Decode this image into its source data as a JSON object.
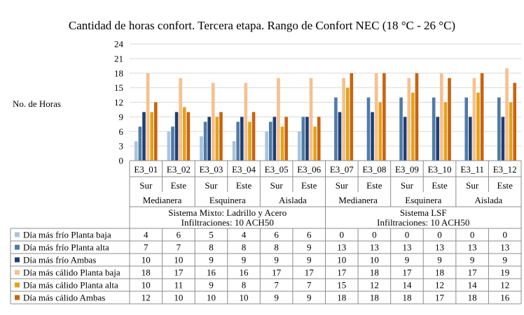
{
  "chart_data": {
    "type": "bar",
    "title": "Cantidad de horas confort. Tercera etapa. Rango de Confort NEC (18 °C - 26 °C)",
    "ylabel": "No. de Horas",
    "xlabel": "",
    "ylim": [
      0,
      24
    ],
    "yticks": [
      0,
      3,
      6,
      9,
      12,
      15,
      18,
      21,
      24
    ],
    "grid": true,
    "legend": "table-left",
    "categories": [
      "E3_01",
      "E3_02",
      "E3_03",
      "E3_04",
      "E3_05",
      "E3_06",
      "E3_07",
      "E3_08",
      "E3_09",
      "E3_10",
      "E3_11",
      "E3_12"
    ],
    "orientations": [
      "Sur",
      "Este",
      "Sur",
      "Este",
      "Sur",
      "Este",
      "Sur",
      "Este",
      "Sur",
      "Este",
      "Sur",
      "Este"
    ],
    "groups": [
      "Medianera",
      "Esquinera",
      "Aislada",
      "Medianera",
      "Esquinera",
      "Aislada"
    ],
    "systems": [
      {
        "line1": "Sistema Mixto: Ladrillo y Acero",
        "line2": "Infiltraciones: 10 ACH50"
      },
      {
        "line1": "Sistema LSF",
        "line2": "Infiltraciones: 10 ACH50"
      }
    ],
    "series": [
      {
        "name": "Día más frío Planta baja",
        "color": "#a9c4db",
        "values": [
          4,
          6,
          5,
          4,
          6,
          6,
          0,
          0,
          0,
          0,
          0,
          0
        ]
      },
      {
        "name": "Día más frío Planta alta",
        "color": "#4f7ba6",
        "values": [
          7,
          7,
          8,
          8,
          8,
          9,
          13,
          13,
          13,
          13,
          13,
          13
        ]
      },
      {
        "name": "Día más frío Ambas",
        "color": "#1f3f73",
        "values": [
          10,
          10,
          9,
          9,
          9,
          9,
          10,
          10,
          9,
          9,
          9,
          9
        ]
      },
      {
        "name": "Día más cálido Planta baja",
        "color": "#f6c08e",
        "values": [
          18,
          17,
          16,
          16,
          17,
          17,
          17,
          18,
          17,
          18,
          17,
          19
        ]
      },
      {
        "name": "Día más cálido Planta alta",
        "color": "#e3a21a",
        "values": [
          10,
          11,
          9,
          8,
          7,
          7,
          15,
          12,
          14,
          12,
          14,
          12
        ]
      },
      {
        "name": "Día más cálido Ambas",
        "color": "#c8640f",
        "values": [
          12,
          10,
          10,
          10,
          9,
          9,
          18,
          18,
          18,
          17,
          18,
          16
        ]
      }
    ]
  }
}
